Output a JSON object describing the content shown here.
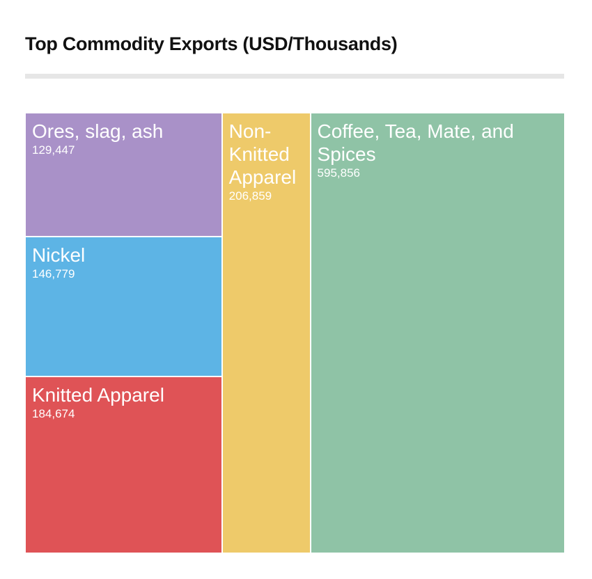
{
  "chart_data": {
    "type": "treemap",
    "title": "Top Commodity Exports (USD/Thousands)",
    "items": [
      {
        "label": "Ores, slag, ash",
        "value": 129447,
        "display": "129,447",
        "color": "#a991c8"
      },
      {
        "label": "Nickel",
        "value": 146779,
        "display": "146,779",
        "color": "#5db4e5"
      },
      {
        "label": "Knitted Apparel",
        "value": 184674,
        "display": "184,674",
        "color": "#df5356"
      },
      {
        "label": "Non-Knitted Apparel",
        "value": 206859,
        "display": "206,859",
        "color": "#eeca6a"
      },
      {
        "label": "Coffee, Tea, Mate, and Spices",
        "value": 595856,
        "display": "595,856",
        "color": "#8fc3a6"
      }
    ],
    "legend": "none",
    "grid": false
  }
}
